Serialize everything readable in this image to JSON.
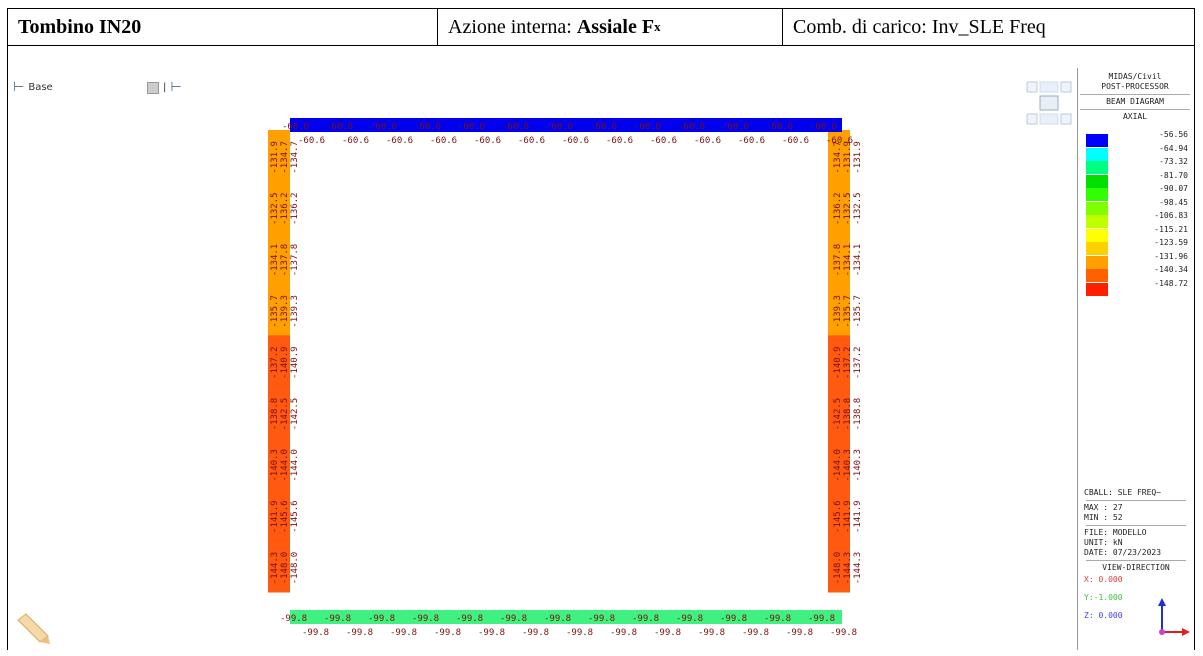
{
  "header": {
    "title": "Tombino IN20",
    "azione_prefix": "Azione interna: ",
    "azione_value": "Assiale F",
    "azione_sub": "x",
    "comb": "Comb. di carico: Inv_SLE Freq"
  },
  "toolbar": {
    "base_label": "Base"
  },
  "legend": {
    "line1": "MIDAS/Civil",
    "line2": "POST-PROCESSOR",
    "line3": "BEAM DIAGRAM",
    "line4": "AXIAL",
    "levels": [
      {
        "value": "-56.56",
        "color": "#0000ff"
      },
      {
        "value": "-64.94",
        "color": "#00ffff"
      },
      {
        "value": "-73.32",
        "color": "#00ff80"
      },
      {
        "value": "-81.70",
        "color": "#00e000"
      },
      {
        "value": "-90.07",
        "color": "#30ff00"
      },
      {
        "value": "-98.45",
        "color": "#80ff00"
      },
      {
        "value": "-106.83",
        "color": "#c0ff00"
      },
      {
        "value": "-115.21",
        "color": "#ffff00"
      },
      {
        "value": "-123.59",
        "color": "#ffd000"
      },
      {
        "value": "-131.96",
        "color": "#ffa000"
      },
      {
        "value": "-140.34",
        "color": "#ff6000"
      },
      {
        "value": "-148.72",
        "color": "#ff2000"
      }
    ],
    "cball": "CBALL: SLE FREQ~",
    "max": "MAX : 27",
    "min": "MIN : 52",
    "file": "FILE: MODELLO",
    "unit": "UNIT: kN",
    "date": "DATE: 07/23/2023",
    "viewdir": "VIEW-DIRECTION",
    "vx": "X: 0.000",
    "vy": "Y:-1.000",
    "vz": "Z: 0.000"
  },
  "frame": {
    "top_value": "-60.6",
    "bottom_value": "-99.8",
    "left_wall": [
      {
        "outer": "-131.9",
        "inner": "-134.7",
        "segcolor": "#ffa000"
      },
      {
        "outer": "-132.5",
        "inner": "-136.2",
        "segcolor": "#ffa000"
      },
      {
        "outer": "-134.1",
        "inner": "-137.8",
        "segcolor": "#ffa000"
      },
      {
        "outer": "-135.7",
        "inner": "-139.3",
        "segcolor": "#ffa000"
      },
      {
        "outer": "-137.2",
        "inner": "-140.9",
        "segcolor": "#ff5a10"
      },
      {
        "outer": "-138.8",
        "inner": "-142.5",
        "segcolor": "#ff5a10"
      },
      {
        "outer": "-140.3",
        "inner": "-144.0",
        "segcolor": "#ff5a10"
      },
      {
        "outer": "-141.9",
        "inner": "-145.6",
        "segcolor": "#ff5a10"
      },
      {
        "outer": "-144.3",
        "inner": "-148.0",
        "segcolor": "#ff5a10"
      }
    ],
    "colors": {
      "top": "#0000ee",
      "bottom": "#40f080",
      "label": "#7a1010"
    }
  }
}
